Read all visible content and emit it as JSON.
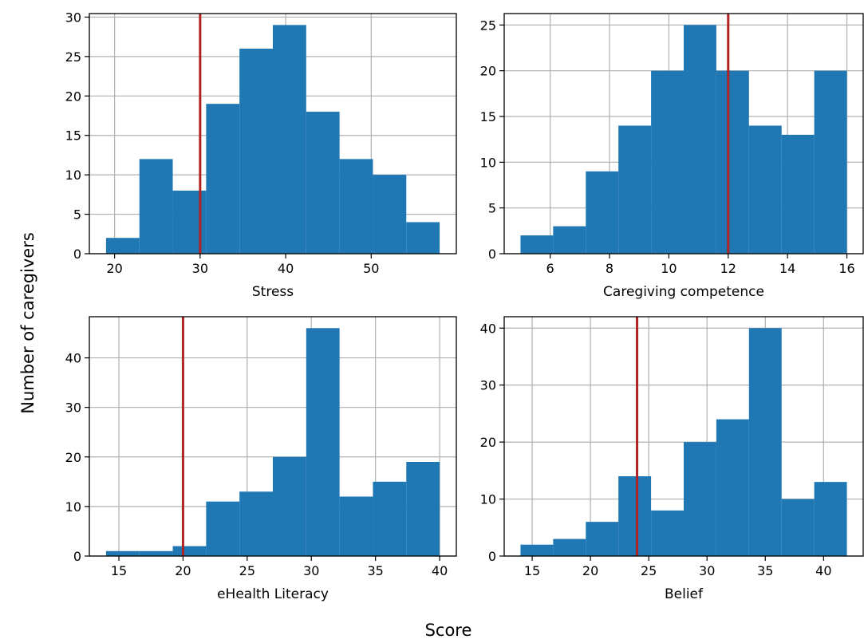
{
  "figure": {
    "xlabel": "Score",
    "ylabel": "Number of caregivers",
    "colors": {
      "bar": "#1f77b4",
      "reference_line": "#b22222",
      "grid": "#b0b0b0"
    }
  },
  "chart_data": [
    {
      "type": "bar",
      "title": "",
      "xlabel": "Stress",
      "ylabel": "",
      "bin_edges": [
        19.0,
        22.9,
        26.8,
        30.7,
        34.6,
        38.5,
        42.4,
        46.3,
        50.2,
        54.1,
        58.0
      ],
      "counts": [
        2,
        12,
        8,
        19,
        26,
        29,
        18,
        12,
        10,
        4
      ],
      "reference_line": 30,
      "xlim": [
        17.05,
        59.95
      ],
      "ylim": [
        0,
        30.45
      ],
      "xticks": [
        20,
        30,
        40,
        50
      ],
      "yticks": [
        0,
        5,
        10,
        15,
        20,
        25,
        30
      ],
      "grid": true
    },
    {
      "type": "bar",
      "title": "",
      "xlabel": "Caregiving competence",
      "ylabel": "",
      "bin_edges": [
        5.0,
        6.1,
        7.2,
        8.3,
        9.4,
        10.5,
        11.6,
        12.7,
        13.8,
        14.9,
        16.0
      ],
      "counts": [
        2,
        3,
        9,
        14,
        20,
        25,
        20,
        14,
        13,
        20
      ],
      "reference_line": 12,
      "xlim": [
        4.45,
        16.55
      ],
      "ylim": [
        0,
        26.25
      ],
      "xticks": [
        6,
        8,
        10,
        12,
        14,
        16
      ],
      "yticks": [
        0,
        5,
        10,
        15,
        20,
        25
      ],
      "grid": true
    },
    {
      "type": "bar",
      "title": "",
      "xlabel": "eHealth Literacy",
      "ylabel": "",
      "bin_edges": [
        14.0,
        16.6,
        19.2,
        21.8,
        24.4,
        27.0,
        29.6,
        32.2,
        34.8,
        37.4,
        40.0
      ],
      "counts": [
        1,
        1,
        2,
        11,
        13,
        20,
        46,
        12,
        15,
        19
      ],
      "reference_line": 20,
      "xlim": [
        12.7,
        41.3
      ],
      "ylim": [
        0,
        48.3
      ],
      "xticks": [
        15,
        20,
        25,
        30,
        35,
        40
      ],
      "yticks": [
        0,
        10,
        20,
        30,
        40
      ],
      "grid": true
    },
    {
      "type": "bar",
      "title": "",
      "xlabel": "Belief",
      "ylabel": "",
      "bin_edges": [
        14.0,
        16.8,
        19.6,
        22.4,
        25.2,
        28.0,
        30.8,
        33.6,
        36.4,
        39.2,
        42.0
      ],
      "counts": [
        2,
        3,
        6,
        14,
        8,
        20,
        24,
        40,
        10,
        13
      ],
      "reference_line": 24,
      "xlim": [
        12.6,
        43.4
      ],
      "ylim": [
        0,
        42.0
      ],
      "xticks": [
        15,
        20,
        25,
        30,
        35,
        40
      ],
      "yticks": [
        0,
        10,
        20,
        30,
        40
      ],
      "grid": true
    }
  ]
}
